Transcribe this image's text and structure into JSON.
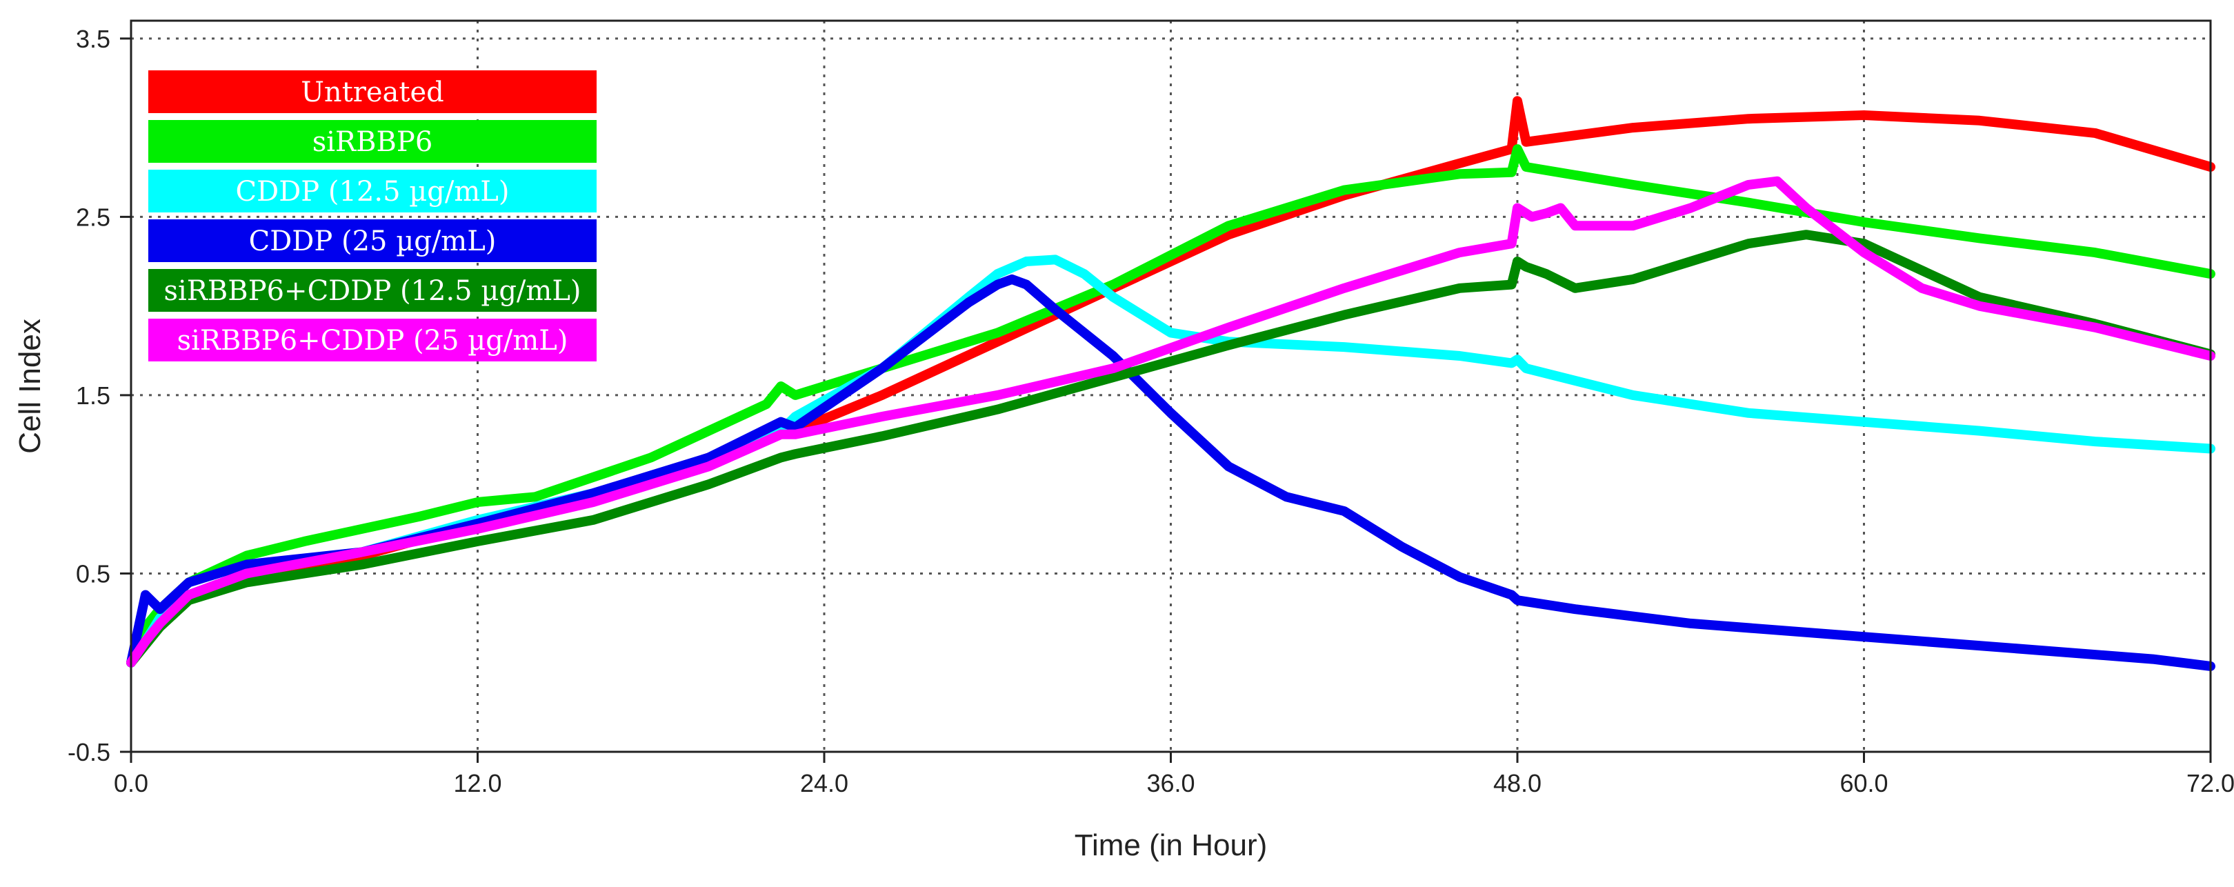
{
  "chart_data": {
    "type": "line",
    "xlabel": "Time (in Hour)",
    "ylabel": "Cell Index",
    "xlim": [
      0,
      72
    ],
    "ylim": [
      -0.5,
      3.6
    ],
    "x_ticks": [
      "0.0",
      "12.0",
      "24.0",
      "36.0",
      "48.0",
      "60.0",
      "72.0"
    ],
    "y_ticks": [
      "-0.5",
      "0.5",
      "1.5",
      "2.5",
      "3.5"
    ],
    "grid": true,
    "legend_position": "top-left",
    "series": [
      {
        "name": "Untreated",
        "color": "#ff0000",
        "points": [
          [
            0,
            0
          ],
          [
            0.5,
            0.15
          ],
          [
            1,
            0.25
          ],
          [
            2,
            0.35
          ],
          [
            3,
            0.43
          ],
          [
            5,
            0.52
          ],
          [
            8,
            0.6
          ],
          [
            12,
            0.78
          ],
          [
            16,
            0.93
          ],
          [
            20,
            1.15
          ],
          [
            22.5,
            1.3
          ],
          [
            23,
            1.3
          ],
          [
            26,
            1.5
          ],
          [
            30,
            1.8
          ],
          [
            34,
            2.1
          ],
          [
            38,
            2.4
          ],
          [
            42,
            2.62
          ],
          [
            46,
            2.8
          ],
          [
            47.8,
            2.88
          ],
          [
            48,
            3.15
          ],
          [
            48.3,
            2.92
          ],
          [
            52,
            3.0
          ],
          [
            56,
            3.05
          ],
          [
            60,
            3.07
          ],
          [
            64,
            3.04
          ],
          [
            68,
            2.97
          ],
          [
            72,
            2.78
          ]
        ]
      },
      {
        "name": "siRBBP6",
        "color": "#00ee00",
        "points": [
          [
            0,
            0
          ],
          [
            0.5,
            0.2
          ],
          [
            1,
            0.3
          ],
          [
            2,
            0.45
          ],
          [
            4,
            0.6
          ],
          [
            6,
            0.68
          ],
          [
            10,
            0.82
          ],
          [
            12,
            0.9
          ],
          [
            14,
            0.93
          ],
          [
            18,
            1.15
          ],
          [
            22,
            1.45
          ],
          [
            22.5,
            1.55
          ],
          [
            23,
            1.5
          ],
          [
            26,
            1.65
          ],
          [
            30,
            1.85
          ],
          [
            34,
            2.12
          ],
          [
            38,
            2.45
          ],
          [
            42,
            2.65
          ],
          [
            46,
            2.74
          ],
          [
            47.8,
            2.75
          ],
          [
            48,
            2.88
          ],
          [
            48.3,
            2.78
          ],
          [
            52,
            2.68
          ],
          [
            56,
            2.58
          ],
          [
            60,
            2.47
          ],
          [
            64,
            2.38
          ],
          [
            68,
            2.3
          ],
          [
            72,
            2.18
          ]
        ]
      },
      {
        "name": "CDDP (12.5 µg/mL)",
        "color": "#00ffff",
        "points": [
          [
            0,
            0
          ],
          [
            0.5,
            0.12
          ],
          [
            1,
            0.25
          ],
          [
            2,
            0.38
          ],
          [
            4,
            0.5
          ],
          [
            8,
            0.62
          ],
          [
            12,
            0.8
          ],
          [
            16,
            0.95
          ],
          [
            20,
            1.12
          ],
          [
            22.5,
            1.3
          ],
          [
            23,
            1.38
          ],
          [
            26,
            1.65
          ],
          [
            29,
            2.05
          ],
          [
            30,
            2.18
          ],
          [
            31,
            2.25
          ],
          [
            32,
            2.26
          ],
          [
            33,
            2.18
          ],
          [
            34,
            2.05
          ],
          [
            36,
            1.85
          ],
          [
            38,
            1.8
          ],
          [
            42,
            1.77
          ],
          [
            46,
            1.72
          ],
          [
            47.8,
            1.68
          ],
          [
            48,
            1.7
          ],
          [
            48.3,
            1.65
          ],
          [
            52,
            1.5
          ],
          [
            56,
            1.4
          ],
          [
            60,
            1.35
          ],
          [
            64,
            1.3
          ],
          [
            68,
            1.24
          ],
          [
            72,
            1.2
          ]
        ]
      },
      {
        "name": "CDDP (25 µg/mL)",
        "color": "#0000ee",
        "points": [
          [
            0,
            0
          ],
          [
            0.5,
            0.38
          ],
          [
            1,
            0.3
          ],
          [
            2,
            0.45
          ],
          [
            4,
            0.55
          ],
          [
            8,
            0.62
          ],
          [
            12,
            0.78
          ],
          [
            16,
            0.95
          ],
          [
            20,
            1.15
          ],
          [
            22.5,
            1.35
          ],
          [
            23,
            1.32
          ],
          [
            26,
            1.65
          ],
          [
            29,
            2.02
          ],
          [
            30,
            2.12
          ],
          [
            30.5,
            2.15
          ],
          [
            31,
            2.12
          ],
          [
            32,
            1.98
          ],
          [
            34,
            1.72
          ],
          [
            36,
            1.4
          ],
          [
            38,
            1.1
          ],
          [
            40,
            0.93
          ],
          [
            42,
            0.85
          ],
          [
            44,
            0.65
          ],
          [
            46,
            0.48
          ],
          [
            47.8,
            0.38
          ],
          [
            48,
            0.35
          ],
          [
            50,
            0.3
          ],
          [
            54,
            0.22
          ],
          [
            58,
            0.17
          ],
          [
            62,
            0.12
          ],
          [
            66,
            0.07
          ],
          [
            70,
            0.02
          ],
          [
            72,
            -0.02
          ]
        ]
      },
      {
        "name": "siRBBP6+CDDP (12.5 µg/mL)",
        "color": "#008800",
        "points": [
          [
            0,
            0
          ],
          [
            0.5,
            0.1
          ],
          [
            1,
            0.2
          ],
          [
            2,
            0.35
          ],
          [
            4,
            0.45
          ],
          [
            6,
            0.5
          ],
          [
            8,
            0.55
          ],
          [
            12,
            0.68
          ],
          [
            16,
            0.8
          ],
          [
            20,
            1.0
          ],
          [
            22.5,
            1.15
          ],
          [
            23,
            1.17
          ],
          [
            26,
            1.27
          ],
          [
            30,
            1.42
          ],
          [
            34,
            1.6
          ],
          [
            38,
            1.78
          ],
          [
            42,
            1.95
          ],
          [
            46,
            2.1
          ],
          [
            47.8,
            2.12
          ],
          [
            48,
            2.25
          ],
          [
            48.3,
            2.22
          ],
          [
            49,
            2.18
          ],
          [
            50,
            2.1
          ],
          [
            52,
            2.15
          ],
          [
            54,
            2.25
          ],
          [
            56,
            2.35
          ],
          [
            58,
            2.4
          ],
          [
            60,
            2.35
          ],
          [
            62,
            2.2
          ],
          [
            64,
            2.05
          ],
          [
            68,
            1.9
          ],
          [
            72,
            1.73
          ]
        ]
      },
      {
        "name": "siRBBP6+CDDP (25 µg/mL)",
        "color": "#ff00ff",
        "points": [
          [
            0,
            0
          ],
          [
            0.5,
            0.12
          ],
          [
            1,
            0.22
          ],
          [
            2,
            0.38
          ],
          [
            4,
            0.5
          ],
          [
            8,
            0.62
          ],
          [
            12,
            0.75
          ],
          [
            16,
            0.9
          ],
          [
            20,
            1.1
          ],
          [
            22.5,
            1.28
          ],
          [
            23,
            1.28
          ],
          [
            26,
            1.38
          ],
          [
            30,
            1.5
          ],
          [
            34,
            1.65
          ],
          [
            38,
            1.88
          ],
          [
            42,
            2.1
          ],
          [
            46,
            2.3
          ],
          [
            47.8,
            2.35
          ],
          [
            48,
            2.55
          ],
          [
            48.5,
            2.5
          ],
          [
            49,
            2.52
          ],
          [
            49.5,
            2.55
          ],
          [
            50,
            2.45
          ],
          [
            52,
            2.45
          ],
          [
            54,
            2.55
          ],
          [
            56,
            2.68
          ],
          [
            57,
            2.7
          ],
          [
            58,
            2.55
          ],
          [
            60,
            2.3
          ],
          [
            62,
            2.1
          ],
          [
            64,
            2.0
          ],
          [
            68,
            1.88
          ],
          [
            72,
            1.72
          ]
        ]
      }
    ]
  }
}
